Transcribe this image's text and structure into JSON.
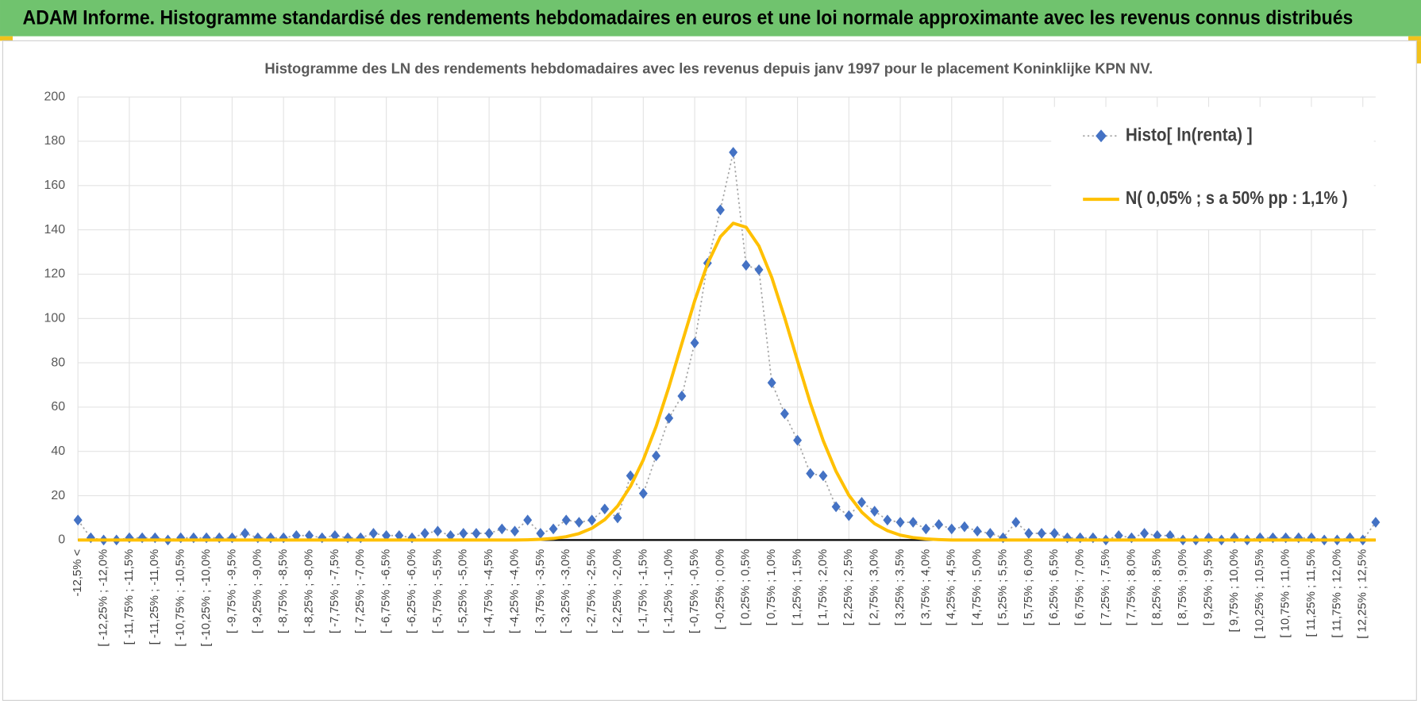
{
  "header": {
    "title": "ADAM Informe. Histogramme standardisé des rendements hebdomadaires en euros et une loi normale approximante avec les revenus connus distribués"
  },
  "chart_data": {
    "type": "line",
    "title": "Histogramme des LN des rendements hebdomadaires avec les revenus depuis janv 1997 pour le placement Koninklijke KPN NV.",
    "categories": [
      "-12,5% <",
      null,
      "[ -12,25% ; -12,0%",
      null,
      "[ -11,75% ; -11,5%",
      null,
      "[ -11,25% ; -11,0%",
      null,
      "[ -10,75% ; -10,5%",
      null,
      "[ -10,25% ; -10,0%",
      null,
      "[ -9,75% ; -9,5%",
      null,
      "[ -9,25% ; -9,0%",
      null,
      "[ -8,75% ; -8,5%",
      null,
      "[ -8,25% ; -8,0%",
      null,
      "[ -7,75% ; -7,5%",
      null,
      "[ -7,25% ; -7,0%",
      null,
      "[ -6,75% ; -6,5%",
      null,
      "[ -6,25% ; -6,0%",
      null,
      "[ -5,75% ; -5,5%",
      null,
      "[ -5,25% ; -5,0%",
      null,
      "[ -4,75% ; -4,5%",
      null,
      "[ -4,25% ; -4,0%",
      null,
      "[ -3,75% ; -3,5%",
      null,
      "[ -3,25% ; -3,0%",
      null,
      "[ -2,75% ; -2,5%",
      null,
      "[ -2,25% ; -2,0%",
      null,
      "[ -1,75% ; -1,5%",
      null,
      "[ -1,25% ; -1,0%",
      null,
      "[ -0,75% ; -0,5%",
      null,
      "[ -0,25% ; 0,0%",
      null,
      "[ 0,25% ; 0,5%",
      null,
      "[ 0,75% ; 1,0%",
      null,
      "[ 1,25% ; 1,5%",
      null,
      "[ 1,75% ; 2,0%",
      null,
      "[ 2,25% ; 2,5%",
      null,
      "[ 2,75% ; 3,0%",
      null,
      "[ 3,25% ; 3,5%",
      null,
      "[ 3,75% ; 4,0%",
      null,
      "[ 4,25% ; 4,5%",
      null,
      "[ 4,75% ; 5,0%",
      null,
      "[ 5,25% ; 5,5%",
      null,
      "[ 5,75% ; 6,0%",
      null,
      "[ 6,25% ; 6,5%",
      null,
      "[ 6,75% ; 7,0%",
      null,
      "[ 7,25% ; 7,5%",
      null,
      "[ 7,75% ; 8,0%",
      null,
      "[ 8,25% ; 8,5%",
      null,
      "[ 8,75% ; 9,0%",
      null,
      "[ 9,25% ; 9,5%",
      null,
      "[ 9,75% ; 10,0%",
      null,
      "[ 10,25% ; 10,5%",
      null,
      "[ 10,75% ; 11,0%",
      null,
      "[ 11,25% ; 11,5%",
      null,
      "[ 11,75% ; 12,0%",
      null,
      "[ 12,25% ; 12,5%",
      null
    ],
    "series": [
      {
        "name": "Histo[ ln(renta) ]",
        "color": "#4472c4",
        "line_color": "#a5a5a5",
        "marker": "diamond",
        "line_style": "dotted",
        "values": [
          9,
          1,
          0,
          0,
          1,
          1,
          1,
          0,
          1,
          1,
          1,
          1,
          1,
          3,
          1,
          1,
          1,
          2,
          2,
          1,
          2,
          1,
          1,
          3,
          2,
          2,
          1,
          3,
          4,
          2,
          3,
          3,
          3,
          5,
          4,
          9,
          3,
          5,
          9,
          8,
          9,
          14,
          10,
          29,
          21,
          38,
          55,
          65,
          89,
          125,
          149,
          175,
          124,
          122,
          71,
          57,
          45,
          30,
          29,
          15,
          11,
          17,
          13,
          9,
          8,
          8,
          5,
          7,
          5,
          6,
          4,
          3,
          1,
          8,
          3,
          3,
          3,
          1,
          1,
          1,
          0,
          2,
          1,
          3,
          2,
          2,
          0,
          0,
          1,
          0,
          1,
          0,
          1,
          1,
          1,
          1,
          1,
          0,
          0,
          1,
          0,
          8
        ]
      },
      {
        "name": "N( 0,05% ; s a 50% pp : 1,1% )",
        "color": "#ffc000",
        "line_style": "solid",
        "values": [
          0,
          0,
          0,
          0,
          0,
          0,
          0,
          0,
          0,
          0,
          0,
          0,
          0,
          0,
          0,
          0,
          0,
          0,
          0,
          0,
          0,
          0,
          0,
          0,
          0,
          0,
          0,
          0,
          0,
          0,
          0,
          0,
          0,
          0,
          0,
          0.1,
          0.3,
          0.7,
          1.5,
          2.9,
          5.3,
          9.2,
          15.3,
          24.2,
          36.2,
          51.3,
          69.2,
          88.7,
          108.0,
          124.7,
          136.9,
          143,
          141.2,
          132.7,
          118.5,
          100.4,
          80.9,
          61.8,
          44.9,
          31.0,
          20.2,
          12.6,
          7.4,
          4.2,
          2.2,
          1.1,
          0.5,
          0.2,
          0,
          0,
          0,
          0,
          0,
          0,
          0,
          0,
          0,
          0,
          0,
          0,
          0,
          0,
          0,
          0,
          0,
          0,
          0,
          0,
          0,
          0,
          0,
          0,
          0,
          0,
          0,
          0,
          0,
          0,
          0,
          0,
          0,
          0
        ]
      }
    ],
    "ylim": [
      0,
      200
    ],
    "yticks": [
      0,
      20,
      40,
      60,
      80,
      100,
      120,
      140,
      160,
      180,
      200
    ],
    "grid": true,
    "legend": "top-right"
  }
}
